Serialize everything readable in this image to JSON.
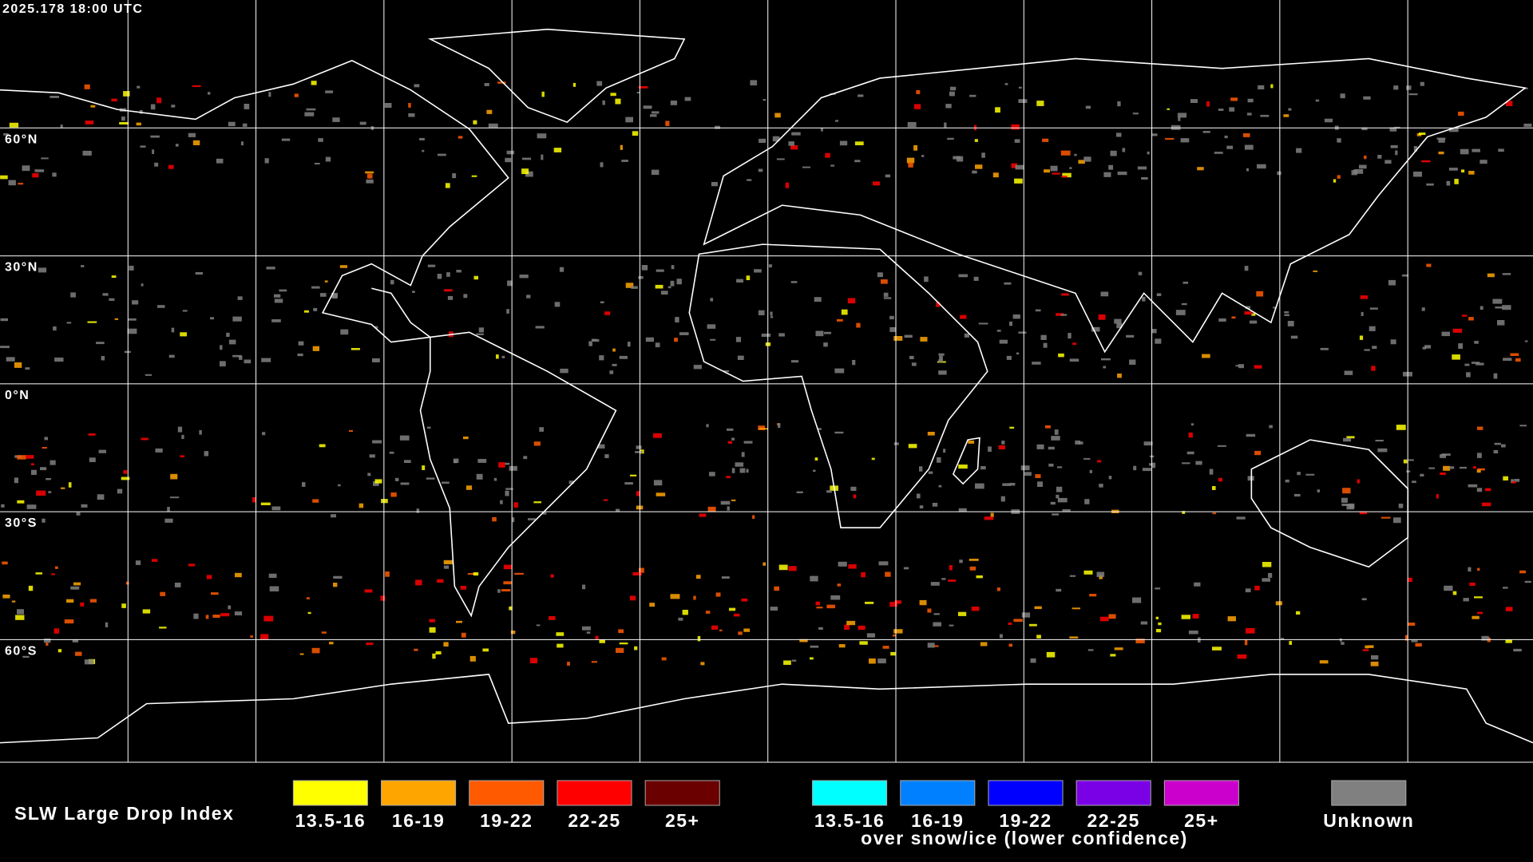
{
  "header": {
    "timestamp": "2025.178 18:00 UTC"
  },
  "map": {
    "latitude_labels": [
      "60°N",
      "30°N",
      "0°N",
      "30°S",
      "60°S"
    ]
  },
  "legend": {
    "title": "SLW Large Drop Index",
    "items": [
      {
        "label": "13.5-16",
        "color": "#ffff00"
      },
      {
        "label": "16-19",
        "color": "#ffa500"
      },
      {
        "label": "19-22",
        "color": "#ff5a00"
      },
      {
        "label": "22-25",
        "color": "#ff0000"
      },
      {
        "label": "25+",
        "color": "#6b0000"
      }
    ],
    "snow_ice_items": [
      {
        "label": "13.5-16",
        "color": "#00ffff"
      },
      {
        "label": "16-19",
        "color": "#0080ff"
      },
      {
        "label": "19-22",
        "color": "#0000ff"
      },
      {
        "label": "22-25",
        "color": "#7a00e6"
      },
      {
        "label": "25+",
        "color": "#cc00cc"
      }
    ],
    "snow_ice_caption": "over snow/ice (lower confidence)",
    "unknown": {
      "label": "Unknown",
      "color": "#808080"
    }
  }
}
